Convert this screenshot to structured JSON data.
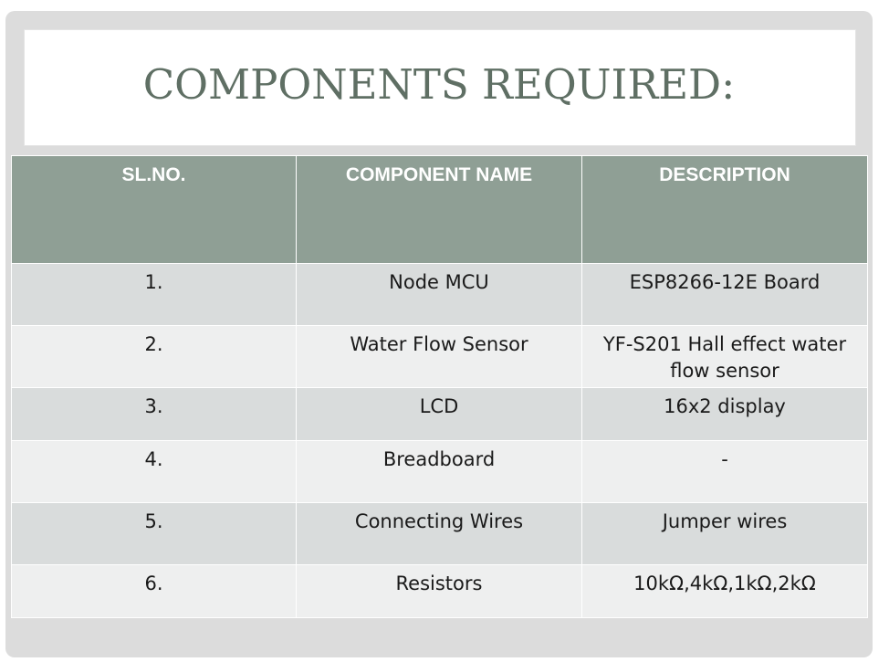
{
  "slide": {
    "title": "COMPONENTS REQUIRED:"
  },
  "table": {
    "headers": [
      "SL.NO.",
      "COMPONENT NAME",
      "DESCRIPTION"
    ],
    "rows": [
      {
        "sl_no": "1.",
        "name": "Node MCU",
        "description": "ESP8266-12E Board"
      },
      {
        "sl_no": "2.",
        "name": "Water Flow Sensor",
        "description": "YF-S201 Hall effect water flow sensor"
      },
      {
        "sl_no": "3.",
        "name": "LCD",
        "description": "16x2 display"
      },
      {
        "sl_no": "4.",
        "name": "Breadboard",
        "description": "-"
      },
      {
        "sl_no": "5.",
        "name": "Connecting Wires",
        "description": "Jumper wires"
      },
      {
        "sl_no": "6.",
        "name": "Resistors",
        "description": "10kΩ,4kΩ,1kΩ,2kΩ"
      }
    ]
  },
  "colors": {
    "title": "#5f6f64",
    "header_bg": "#8f9f95",
    "row_odd_bg": "#d9dcdc",
    "row_even_bg": "#eeefef"
  }
}
